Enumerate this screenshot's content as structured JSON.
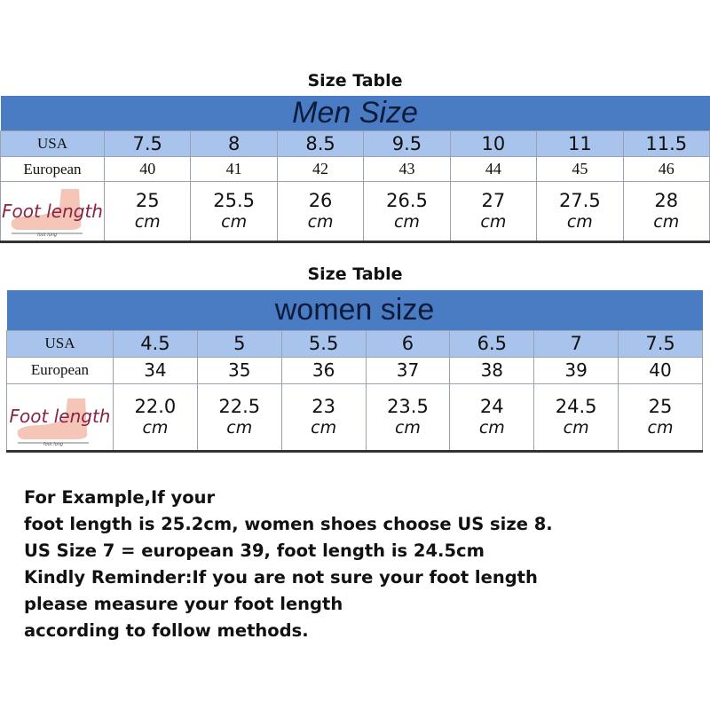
{
  "men": {
    "title": "Size Table",
    "banner": "Men Size",
    "usa_label": "USA",
    "eu_label": "European",
    "foot_label": "Foot length",
    "usa": [
      "7.5",
      "8",
      "8.5",
      "9.5",
      "10",
      "11",
      "11.5"
    ],
    "eu": [
      "40",
      "41",
      "42",
      "43",
      "44",
      "45",
      "46"
    ],
    "foot": [
      "25",
      "25.5",
      "26",
      "26.5",
      "27",
      "27.5",
      "28"
    ],
    "unit": "cm"
  },
  "women": {
    "title": "Size Table",
    "banner": "women size",
    "usa_label": "USA",
    "eu_label": "European",
    "foot_label": "Foot length",
    "usa": [
      "4.5",
      "5",
      "5.5",
      "6",
      "6.5",
      "7",
      "7.5"
    ],
    "eu": [
      "34",
      "35",
      "36",
      "37",
      "38",
      "39",
      "40"
    ],
    "foot": [
      "22.0",
      "22.5",
      "23",
      "23.5",
      "24",
      "24.5",
      "25"
    ],
    "unit": "cm"
  },
  "foot_image_caption": "foot long",
  "note": [
    "For Example,If your",
    "foot length is 25.2cm, women shoes choose US size 8.",
    "US Size 7 = european 39, foot length is 24.5cm",
    "Kindly Reminder:If you are not sure your foot length",
    "please measure your foot length",
    "according to follow methods."
  ],
  "colors": {
    "banner": "#4a7cc4",
    "usa_row": "#a8c4ec",
    "foot_label": "#8a2342"
  }
}
